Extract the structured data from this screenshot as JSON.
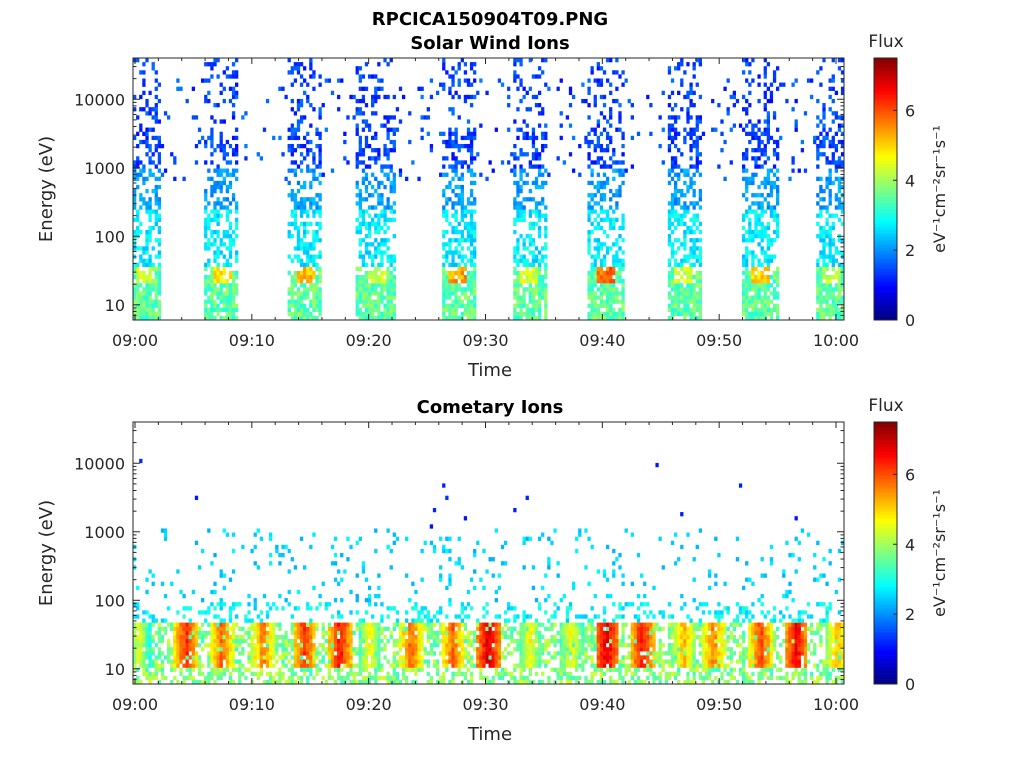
{
  "figure": {
    "title": "RPCICA150904T09.PNG"
  },
  "chart_data": [
    {
      "type": "heatmap",
      "title": "Solar Wind Ions",
      "xlabel": "Time",
      "ylabel": "Energy (eV)",
      "x_ticks": [
        "09:00",
        "09:10",
        "09:20",
        "09:30",
        "09:40",
        "09:50",
        "10:00"
      ],
      "x_range": [
        "09:00",
        "10:00"
      ],
      "y_scale": "log",
      "y_ticks": [
        "10",
        "100",
        "1000",
        "10000"
      ],
      "y_range_eV": [
        6,
        40000
      ],
      "colorbar": {
        "label": "eV⁻¹cm⁻²sr⁻¹s⁻¹",
        "title": "Flux",
        "ticks": [
          "0",
          "2",
          "4",
          "6"
        ],
        "range": [
          0,
          7.5
        ],
        "colormap": "jet"
      },
      "bursts_minutes": [
        {
          "center": 1.0,
          "width": 2.6,
          "peak": 4.8
        },
        {
          "center": 7.5,
          "width": 3.0,
          "peak": 5.2
        },
        {
          "center": 14.5,
          "width": 3.0,
          "peak": 5.6
        },
        {
          "center": 20.5,
          "width": 3.2,
          "peak": 4.6
        },
        {
          "center": 27.5,
          "width": 3.0,
          "peak": 5.8
        },
        {
          "center": 33.5,
          "width": 3.0,
          "peak": 4.8
        },
        {
          "center": 40.0,
          "width": 3.2,
          "peak": 6.2
        },
        {
          "center": 46.5,
          "width": 3.0,
          "peak": 4.8
        },
        {
          "center": 53.0,
          "width": 3.2,
          "peak": 5.4
        },
        {
          "center": 59.0,
          "width": 2.6,
          "peak": 4.6
        }
      ]
    },
    {
      "type": "heatmap",
      "title": "Cometary Ions",
      "xlabel": "Time",
      "ylabel": "Energy (eV)",
      "x_ticks": [
        "09:00",
        "09:10",
        "09:20",
        "09:30",
        "09:40",
        "09:50",
        "10:00"
      ],
      "x_range": [
        "09:00",
        "10:00"
      ],
      "y_scale": "log",
      "y_ticks": [
        "10",
        "100",
        "1000",
        "10000"
      ],
      "y_range_eV": [
        6,
        40000
      ],
      "colorbar": {
        "label": "eV⁻¹cm⁻²sr⁻¹s⁻¹",
        "title": "Flux",
        "ticks": [
          "0",
          "2",
          "4",
          "6"
        ],
        "range": [
          0,
          7.5
        ],
        "colormap": "jet"
      },
      "hot_spots_minutes": [
        {
          "t": 0.5,
          "peak": 4.8
        },
        {
          "t": 4.5,
          "peak": 6.6
        },
        {
          "t": 7.5,
          "peak": 6.2
        },
        {
          "t": 11.0,
          "peak": 6.0
        },
        {
          "t": 14.5,
          "peak": 6.6
        },
        {
          "t": 17.5,
          "peak": 6.8
        },
        {
          "t": 20.0,
          "peak": 5.0
        },
        {
          "t": 23.5,
          "peak": 6.2
        },
        {
          "t": 27.0,
          "peak": 6.2
        },
        {
          "t": 30.0,
          "peak": 7.2
        },
        {
          "t": 33.5,
          "peak": 5.0
        },
        {
          "t": 37.0,
          "peak": 5.0
        },
        {
          "t": 40.0,
          "peak": 7.2
        },
        {
          "t": 43.0,
          "peak": 6.8
        },
        {
          "t": 46.5,
          "peak": 5.6
        },
        {
          "t": 49.0,
          "peak": 6.0
        },
        {
          "t": 53.0,
          "peak": 6.4
        },
        {
          "t": 56.0,
          "peak": 7.0
        },
        {
          "t": 59.5,
          "peak": 5.6
        }
      ]
    }
  ]
}
